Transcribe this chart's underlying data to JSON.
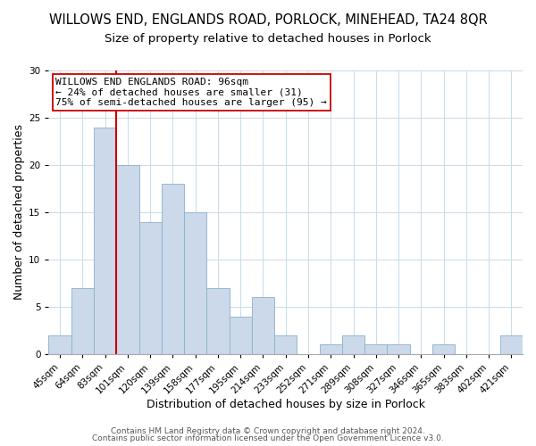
{
  "title": "WILLOWS END, ENGLANDS ROAD, PORLOCK, MINEHEAD, TA24 8QR",
  "subtitle": "Size of property relative to detached houses in Porlock",
  "xlabel": "Distribution of detached houses by size in Porlock",
  "ylabel": "Number of detached properties",
  "bin_labels": [
    "45sqm",
    "64sqm",
    "83sqm",
    "101sqm",
    "120sqm",
    "139sqm",
    "158sqm",
    "177sqm",
    "195sqm",
    "214sqm",
    "233sqm",
    "252sqm",
    "271sqm",
    "289sqm",
    "308sqm",
    "327sqm",
    "346sqm",
    "365sqm",
    "383sqm",
    "402sqm",
    "421sqm"
  ],
  "bar_values": [
    2,
    7,
    24,
    20,
    14,
    18,
    15,
    7,
    4,
    6,
    2,
    0,
    1,
    2,
    1,
    1,
    0,
    1,
    0,
    0,
    2
  ],
  "bar_color": "#ccd9ea",
  "bar_edge_color": "#8ab0cc",
  "ylim": [
    0,
    30
  ],
  "yticks": [
    0,
    5,
    10,
    15,
    20,
    25,
    30
  ],
  "property_line_bin_idx": 3,
  "property_line_color": "#cc0000",
  "annotation_text": "WILLOWS END ENGLANDS ROAD: 96sqm\n← 24% of detached houses are smaller (31)\n75% of semi-detached houses are larger (95) →",
  "annotation_box_color": "#ffffff",
  "annotation_box_edge_color": "#cc0000",
  "footer_line1": "Contains HM Land Registry data © Crown copyright and database right 2024.",
  "footer_line2": "Contains public sector information licensed under the Open Government Licence v3.0.",
  "background_color": "#ffffff",
  "grid_color": "#c8dcea",
  "title_fontsize": 10.5,
  "subtitle_fontsize": 9.5,
  "xlabel_fontsize": 9,
  "ylabel_fontsize": 9,
  "tick_fontsize": 7.5,
  "ann_fontsize": 8,
  "footer_fontsize": 6.5
}
